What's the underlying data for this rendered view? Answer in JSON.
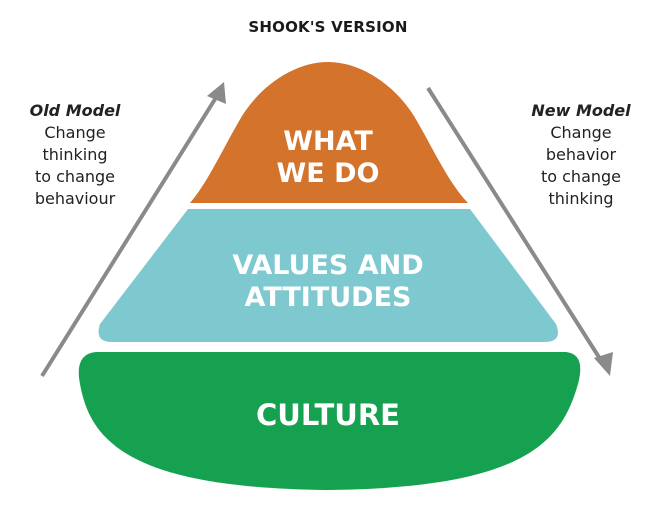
{
  "title": "SHOOK'S VERSION",
  "left_note": {
    "heading": "Old Model",
    "lines": [
      "Change",
      "thinking",
      "to change",
      "behaviour"
    ]
  },
  "right_note": {
    "heading": "New Model",
    "lines": [
      "Change",
      "behavior",
      "to change",
      "thinking"
    ]
  },
  "layers": {
    "top": {
      "lines": [
        "WHAT",
        "WE DO"
      ],
      "color": "#d4732c"
    },
    "middle": {
      "lines": [
        "VALUES AND",
        "ATTITUDES"
      ],
      "color": "#7ec8d0"
    },
    "bottom": {
      "lines": [
        "CULTURE"
      ],
      "color": "#16a150"
    }
  },
  "colors": {
    "arrow": "#8a8a8a",
    "layer_text": "#ffffff"
  }
}
